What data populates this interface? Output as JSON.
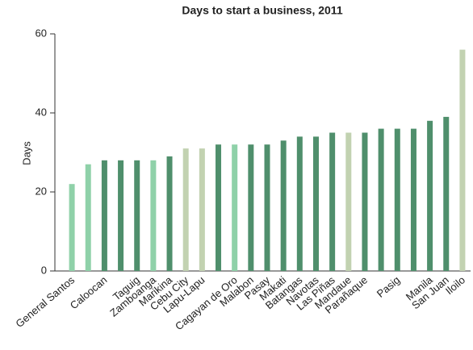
{
  "chart_data": {
    "type": "bar",
    "title": "Days to start a business, 2011",
    "y_label": "Days",
    "categories": [
      "General Santos",
      null,
      "Caloocan",
      null,
      "Taguig",
      "Zamboanga",
      "Marikina",
      "Cebu City",
      "Lapu-Lapu",
      null,
      "Cagayan de Oro",
      "Malabon",
      "Pasay",
      "Makati",
      "Batangas",
      "Navotas",
      "Las Piñas",
      "Mandaue",
      "Parañaque",
      null,
      "Pasig",
      null,
      "Manila",
      "San Juan",
      "Iloilo"
    ],
    "values": [
      22,
      27,
      28,
      28,
      28,
      28,
      29,
      31,
      31,
      32,
      32,
      32,
      32,
      33,
      34,
      34,
      35,
      35,
      35,
      36,
      36,
      36,
      38,
      39,
      56
    ],
    "colors": [
      "#8fd1a9",
      "#8fd1a9",
      "#4f8f6c",
      "#4f8f6c",
      "#4f8f6c",
      "#8fd1a9",
      "#4f8f6c",
      "#c2d2b1",
      "#c2d2b1",
      "#4f8f6c",
      "#8fd1a9",
      "#4f8f6c",
      "#4f8f6c",
      "#4f8f6c",
      "#4f8f6c",
      "#4f8f6c",
      "#4f8f6c",
      "#c2d2b1",
      "#4f8f6c",
      "#4f8f6c",
      "#4f8f6c",
      "#4f8f6c",
      "#4f8f6c",
      "#4f8f6c",
      "#c2d2b1"
    ],
    "ylim": [
      0,
      60
    ],
    "yticks": [
      0,
      20,
      40,
      60
    ]
  }
}
